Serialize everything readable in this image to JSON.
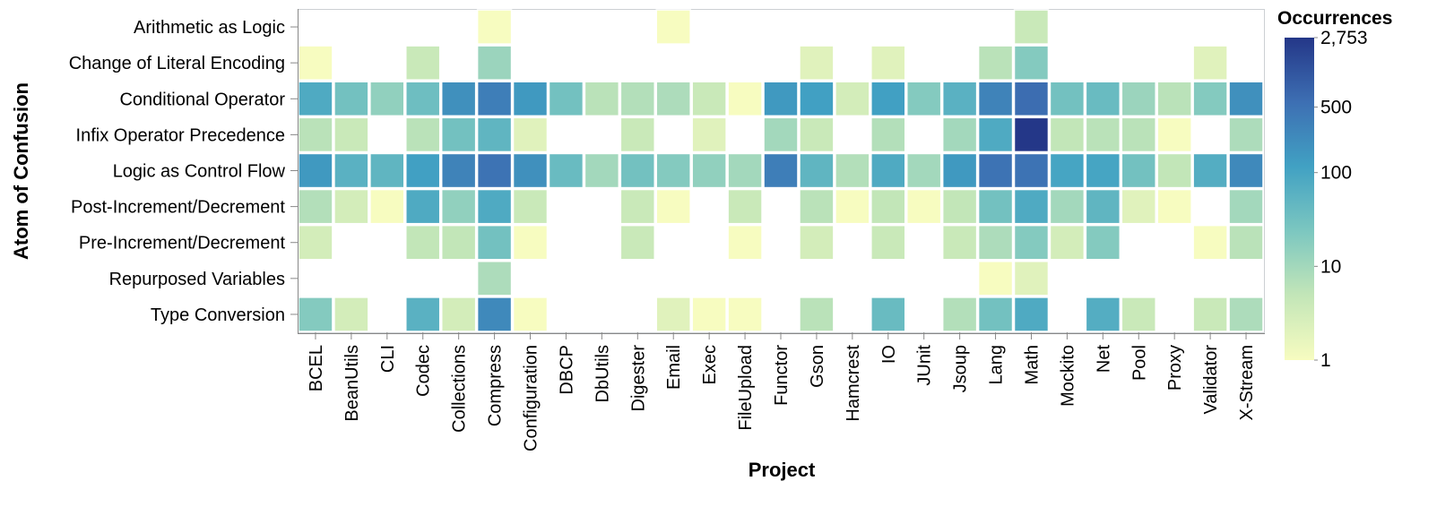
{
  "chart_data": {
    "type": "heatmap",
    "title": "",
    "xlabel": "Project",
    "ylabel": "Atom of Confusion",
    "x": [
      "BCEL",
      "BeanUtils",
      "CLI",
      "Codec",
      "Collections",
      "Compress",
      "Configuration",
      "DBCP",
      "DbUtils",
      "Digester",
      "Email",
      "Exec",
      "FileUpload",
      "Functor",
      "Gson",
      "Hamcrest",
      "IO",
      "JUnit",
      "Jsoup",
      "Lang",
      "Math",
      "Mockito",
      "Net",
      "Pool",
      "Proxy",
      "Validator",
      "X-Stream"
    ],
    "y": [
      "Arithmetic as Logic",
      "Change of Literal Encoding",
      "Conditional Operator",
      "Infix Operator Precedence",
      "Logic as Control Flow",
      "Post-Increment/Decrement",
      "Pre-Increment/Decrement",
      "Repurposed Variables",
      "Type Conversion"
    ],
    "values": [
      [
        null,
        null,
        null,
        null,
        null,
        1,
        null,
        null,
        null,
        null,
        1,
        null,
        null,
        null,
        null,
        null,
        null,
        null,
        null,
        null,
        4,
        null,
        null,
        null,
        null,
        null,
        null
      ],
      [
        1,
        null,
        null,
        4,
        null,
        12,
        null,
        null,
        null,
        null,
        null,
        null,
        null,
        null,
        2,
        null,
        2,
        null,
        null,
        6,
        20,
        null,
        null,
        null,
        null,
        2,
        null
      ],
      [
        80,
        30,
        15,
        35,
        200,
        350,
        150,
        30,
        6,
        7,
        8,
        4,
        1,
        150,
        120,
        3,
        120,
        20,
        60,
        300,
        600,
        30,
        40,
        12,
        6,
        20,
        200
      ],
      [
        6,
        4,
        null,
        6,
        30,
        50,
        2,
        null,
        null,
        4,
        null,
        2,
        null,
        10,
        4,
        null,
        7,
        null,
        10,
        80,
        2753,
        5,
        6,
        6,
        1,
        null,
        8
      ],
      [
        150,
        60,
        50,
        120,
        300,
        500,
        200,
        40,
        10,
        30,
        20,
        15,
        10,
        350,
        50,
        7,
        80,
        10,
        150,
        500,
        500,
        100,
        100,
        30,
        5,
        70,
        250
      ],
      [
        7,
        3,
        1,
        80,
        15,
        80,
        4,
        null,
        null,
        4,
        1,
        null,
        4,
        null,
        6,
        1,
        5,
        1,
        5,
        30,
        80,
        10,
        50,
        2,
        1,
        null,
        10
      ],
      [
        3,
        null,
        null,
        5,
        5,
        30,
        1,
        null,
        null,
        4,
        null,
        null,
        1,
        null,
        3,
        null,
        4,
        null,
        4,
        8,
        20,
        3,
        20,
        null,
        null,
        1,
        6
      ],
      [
        null,
        null,
        null,
        null,
        null,
        8,
        null,
        null,
        null,
        null,
        null,
        null,
        null,
        null,
        null,
        null,
        null,
        null,
        null,
        1,
        2,
        null,
        null,
        null,
        null,
        null,
        null
      ],
      [
        20,
        3,
        null,
        60,
        3,
        250,
        1,
        null,
        null,
        null,
        2,
        1,
        1,
        null,
        6,
        null,
        40,
        null,
        7,
        30,
        80,
        null,
        70,
        4,
        null,
        4,
        8
      ]
    ],
    "legend": {
      "title": "Occurrences",
      "scale": "log",
      "domain": [
        1,
        2753
      ],
      "ticks": [
        "2,753",
        "500",
        "100",
        "10",
        "1"
      ],
      "tick_values": [
        2753,
        500,
        100,
        10,
        1
      ],
      "position": "right"
    },
    "colors": [
      "#f7fcc0",
      "#c3e6b8",
      "#7cc7c0",
      "#41a1c3",
      "#3d6fb3",
      "#243788"
    ],
    "grid": false
  }
}
